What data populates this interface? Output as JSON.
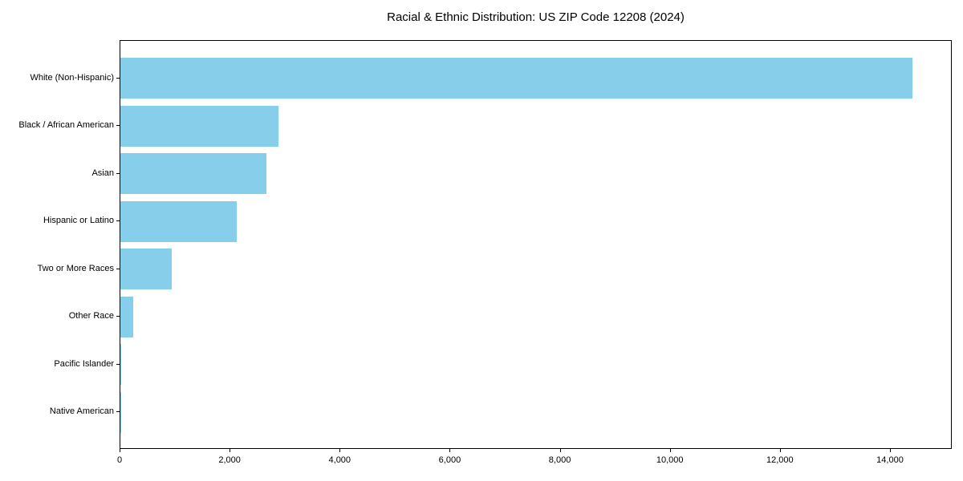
{
  "chart_data": {
    "type": "bar",
    "orientation": "horizontal",
    "title": "Racial & Ethnic Distribution: US ZIP Code 12208 (2024)",
    "categories": [
      "White (Non-Hispanic)",
      "Black / African American",
      "Asian",
      "Hispanic or Latino",
      "Two or More Races",
      "Other Race",
      "Pacific Islander",
      "Native American"
    ],
    "values": [
      14400,
      2870,
      2660,
      2120,
      940,
      240,
      10,
      5
    ],
    "xlabel": "",
    "ylabel": "",
    "xlim": [
      0,
      15120
    ],
    "x_ticks": [
      0,
      2000,
      4000,
      6000,
      8000,
      10000,
      12000,
      14000
    ],
    "x_tick_labels": [
      "0",
      "2,000",
      "4,000",
      "6,000",
      "8,000",
      "10,000",
      "12,000",
      "14,000"
    ],
    "bar_color": "#87CEEB",
    "axis_color": "#000000",
    "text_color": "#000000",
    "background_color": "#FFFFFF",
    "grid": false,
    "legend_position": "none"
  }
}
